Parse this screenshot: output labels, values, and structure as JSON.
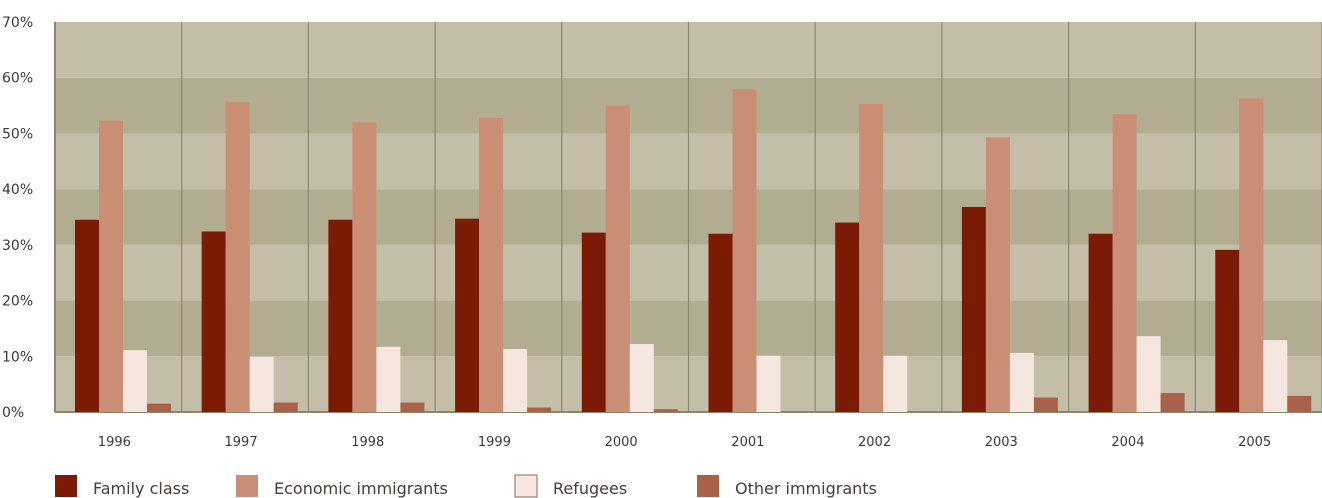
{
  "chart_data": {
    "type": "bar",
    "title": "",
    "xlabel": "",
    "ylabel": "",
    "ylim": [
      0,
      70
    ],
    "y_ticks": [
      "0%",
      "10%",
      "20%",
      "30%",
      "40%",
      "50%",
      "60%",
      "70%"
    ],
    "grid": "alternating horizontal bands",
    "legend_position": "bottom-left",
    "categories": [
      "1996",
      "1997",
      "1998",
      "1999",
      "2000",
      "2001",
      "2002",
      "2003",
      "2004",
      "2005"
    ],
    "series": [
      {
        "name": "Family class",
        "color": "#7b1a05",
        "values": [
          34.5,
          32.4,
          34.5,
          34.7,
          32.2,
          32.0,
          34.0,
          36.8,
          32.0,
          29.1
        ]
      },
      {
        "name": "Economic immigrants",
        "color": "#c98e74",
        "values": [
          52.3,
          55.6,
          52.0,
          52.8,
          55.0,
          57.9,
          55.3,
          49.3,
          53.5,
          56.3
        ]
      },
      {
        "name": "Refugees",
        "color": "#f5e6df",
        "values": [
          11.1,
          9.9,
          11.7,
          11.3,
          12.2,
          10.1,
          10.1,
          10.6,
          13.6,
          12.9
        ]
      },
      {
        "name": "Other immigrants",
        "color": "#a8624a",
        "values": [
          1.5,
          1.7,
          1.7,
          0.8,
          0.5,
          0.0,
          0.0,
          2.6,
          3.4,
          2.9
        ]
      }
    ],
    "colors": {
      "band_light": "#c4bea9",
      "band_dark": "#b2ad91",
      "axis": "#8a8670"
    }
  }
}
